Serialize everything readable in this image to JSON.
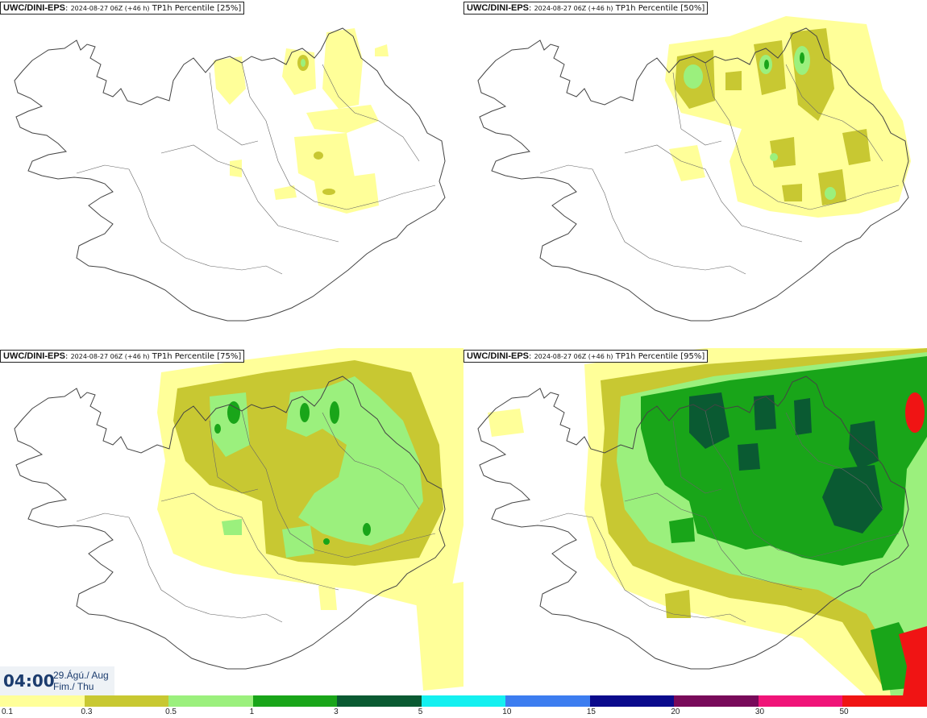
{
  "panels": [
    {
      "id": "panel-25",
      "model": "UWC/DINI-EPS",
      "run": "2024-08-27 06Z (+46 h)",
      "title": "TP1h Percentile [25%]"
    },
    {
      "id": "panel-50",
      "model": "UWC/DINI-EPS",
      "run": "2024-08-27 06Z (+46 h)",
      "title": "TP1h Percentile [50%]"
    },
    {
      "id": "panel-75",
      "model": "UWC/DINI-EPS",
      "run": "2024-08-27 06Z (+46 h)",
      "title": "TP1h Percentile [75%]"
    },
    {
      "id": "panel-95",
      "model": "UWC/DINI-EPS",
      "run": "2024-08-27 06Z (+46 h)",
      "title": "TP1h Percentile [95%]"
    }
  ],
  "valid_time": {
    "clock": "04:00",
    "date_line1": "29.Ágú./ Aug",
    "date_line2": "Fim./ Thu"
  },
  "legend": {
    "labels": [
      "0.1",
      "0.3",
      "0.5",
      "1",
      "3",
      "5",
      "10",
      "15",
      "20",
      "30",
      "50"
    ],
    "colors": [
      "#ffff99",
      "#c8c832",
      "#9bf07d",
      "#19a519",
      "#0a5a32",
      "#14f0f0",
      "#3c7df0",
      "#0a0a8c",
      "#780a5a",
      "#f01478",
      "#f01414"
    ]
  },
  "map_colors": {
    "outline": "#444444",
    "pale_yellow": "#ffff99",
    "olive": "#c8c832",
    "light_green": "#9bf07d",
    "green": "#19a519",
    "dark_green": "#0a5a32",
    "red": "#f01414"
  }
}
